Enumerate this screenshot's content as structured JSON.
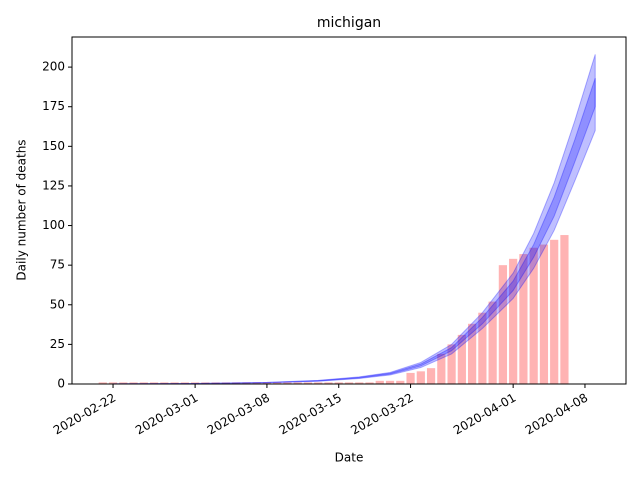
{
  "chart_data": {
    "type": "bar",
    "title": "michigan",
    "xlabel": "Date",
    "ylabel": "Daily number of deaths",
    "x": [
      "2020-02-21",
      "2020-02-22",
      "2020-02-23",
      "2020-02-24",
      "2020-02-25",
      "2020-02-26",
      "2020-02-27",
      "2020-02-28",
      "2020-02-29",
      "2020-03-01",
      "2020-03-02",
      "2020-03-03",
      "2020-03-04",
      "2020-03-05",
      "2020-03-06",
      "2020-03-07",
      "2020-03-08",
      "2020-03-09",
      "2020-03-10",
      "2020-03-11",
      "2020-03-12",
      "2020-03-13",
      "2020-03-14",
      "2020-03-15",
      "2020-03-16",
      "2020-03-17",
      "2020-03-18",
      "2020-03-19",
      "2020-03-20",
      "2020-03-21",
      "2020-03-22",
      "2020-03-23",
      "2020-03-24",
      "2020-03-25",
      "2020-03-26",
      "2020-03-27",
      "2020-03-28",
      "2020-03-29",
      "2020-03-30",
      "2020-03-31",
      "2020-04-01",
      "2020-04-02",
      "2020-04-03",
      "2020-04-04",
      "2020-04-05",
      "2020-04-06"
    ],
    "values": [
      1,
      1,
      1,
      1,
      1,
      1,
      1,
      1,
      1,
      1,
      1,
      1,
      1,
      1,
      1,
      1,
      1,
      1,
      1,
      1,
      1,
      1,
      1,
      1,
      1,
      1,
      1,
      2,
      2,
      2,
      7,
      8,
      10,
      19,
      25,
      31,
      38,
      45,
      52,
      75,
      79,
      82,
      86,
      88,
      91,
      94
    ],
    "color": "#ffb3b3",
    "bands": {
      "x": [
        "2020-02-22",
        "2020-03-01",
        "2020-03-08",
        "2020-03-13",
        "2020-03-17",
        "2020-03-20",
        "2020-03-23",
        "2020-03-26",
        "2020-03-29",
        "2020-04-01",
        "2020-04-03",
        "2020-04-05",
        "2020-04-07",
        "2020-04-09"
      ],
      "series": [
        {
          "color": "#0000ff",
          "lower": [
            0.09,
            0.26,
            0.78,
            1.7,
            3.5,
            5.7,
            10.4,
            19,
            35,
            54,
            73,
            97,
            128,
            160
          ],
          "upper": [
            0.11,
            0.34,
            1.0,
            2.3,
            4.5,
            7.3,
            13.6,
            25,
            45,
            70,
            95,
            127,
            166,
            208
          ]
        },
        {
          "color": "#0000ff",
          "lower": [
            0.1,
            0.29,
            0.86,
            1.9,
            3.8,
            6.2,
            11.4,
            21,
            38,
            59,
            80,
            106,
            140,
            175
          ],
          "upper": [
            0.1,
            0.32,
            0.95,
            2.1,
            4.2,
            6.8,
            12.6,
            23,
            42,
            65,
            88,
            118,
            154,
            193
          ]
        }
      ]
    },
    "xlim": [
      "2020-02-18",
      "2020-04-12"
    ],
    "ylim": [
      0,
      219
    ],
    "xticks": [
      "2020-02-22",
      "2020-03-01",
      "2020-03-08",
      "2020-03-15",
      "2020-03-22",
      "2020-04-01",
      "2020-04-08"
    ],
    "yticks": [
      0,
      25,
      50,
      75,
      100,
      125,
      150,
      175,
      200
    ]
  }
}
